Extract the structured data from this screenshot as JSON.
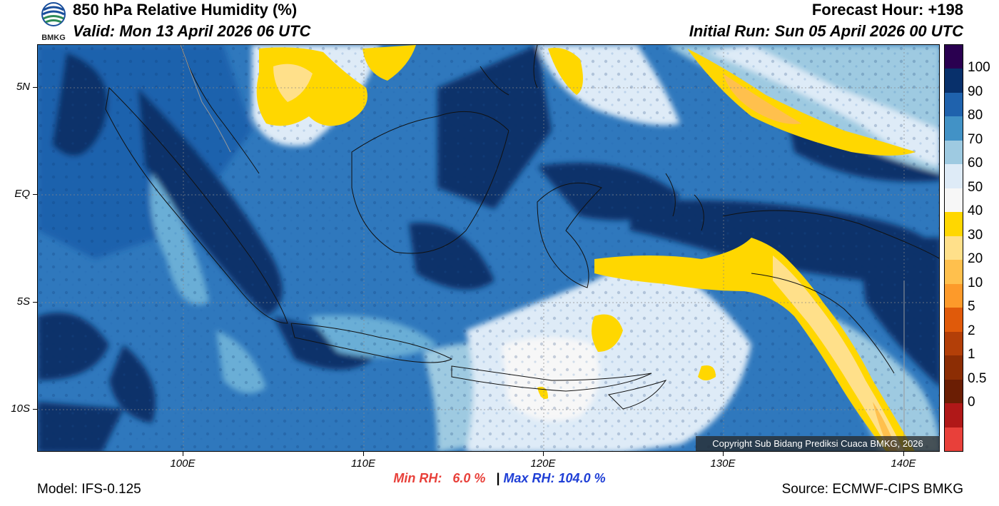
{
  "header": {
    "title": "850 hPa Relative Humidity (%)",
    "valid": "Valid: Mon 13 April 2026 06 UTC",
    "forecast_hour": "Forecast Hour: +198",
    "initial_run": "Initial Run: Sun 05 April 2026 00 UTC",
    "logo_text": "BMKG"
  },
  "map": {
    "lat_labels": [
      "5N",
      "EQ",
      "5S",
      "10S"
    ],
    "lon_labels": [
      "100E",
      "110E",
      "120E",
      "130E",
      "140E"
    ],
    "copyright": "Copyright Sub Bidang Prediksi Cuaca BMKG, 2026"
  },
  "colorbar": {
    "labels": [
      "100",
      "90",
      "80",
      "70",
      "60",
      "50",
      "40",
      "30",
      "20",
      "10",
      "5",
      "2",
      "1",
      "0.5",
      "0"
    ],
    "colors": [
      "#2a0050",
      "#08306b",
      "#1f62ad",
      "#4292c6",
      "#9ecae1",
      "#deebf7",
      "#f7f7f7",
      "#ffd700",
      "#ffe08a",
      "#ffc04d",
      "#fd9a2a",
      "#e05a0a",
      "#b33f08",
      "#8c2d04",
      "#6b1e04",
      "#b01818",
      "#e8403a"
    ]
  },
  "stats": {
    "min_prefix": "Min RH:",
    "min_value": "6.0 %",
    "separator": "|",
    "max_prefix": "Max RH:",
    "max_value": "104.0 %"
  },
  "footer": {
    "model": "Model: IFS-0.125",
    "source": "Source: ECMWF-CIPS BMKG"
  }
}
